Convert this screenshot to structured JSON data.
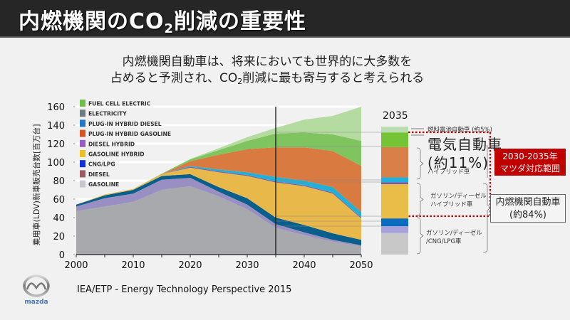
{
  "header": {
    "title_pre": "内燃機関のCO",
    "title_sub": "2",
    "title_post": "削減の重要性"
  },
  "subtitle": {
    "line1": "内燃機関自動車は、将来においても世界的に大多数を",
    "line2_pre": "占めると予測され、CO",
    "line2_sub": "2",
    "line2_post": "削減に最も寄与すると考えられる"
  },
  "source": "IEA/ETP  -  Energy Technology Perspective 2015",
  "logo": {
    "icon": "mazda-logo",
    "text": "mazda"
  },
  "annotations": {
    "bar_year": "2035",
    "fcev": "燃料電池自動車 (約5%)",
    "ev_big_1": "電気自動車",
    "ev_big_2": "(約11%)",
    "plugin_hybrid": "ハイブリッド車",
    "hybrid_1": "ガソリン/ディーゼル",
    "hybrid_2": "ハイブリッド車",
    "conv_1": "ガソリン/ディーゼル",
    "conv_2": "/CNG/LPG車",
    "mazda_range_1": "2030-2035年",
    "mazda_range_2": "マツダ対応範囲",
    "ice_1": "内燃機関自動車",
    "ice_2": "(約84%)"
  },
  "chart_data": {
    "type": "area",
    "stacked": true,
    "title": "",
    "xlabel": "",
    "ylabel": "乗用車(LDV)新車販売台数[百万台]",
    "x": [
      2000,
      2005,
      2010,
      2015,
      2020,
      2025,
      2030,
      2035,
      2040,
      2045,
      2050
    ],
    "xticks": [
      "2000",
      "2010",
      "2020",
      "2030",
      "2040",
      "2050"
    ],
    "yticks": [
      "0",
      "20",
      "40",
      "60",
      "80",
      "100",
      "120",
      "140",
      "160"
    ],
    "xlim": [
      2000,
      2050
    ],
    "ylim": [
      0,
      160
    ],
    "vertical_marker": 2035,
    "legend_position": "top-left",
    "series": [
      {
        "name": "GASOLINE",
        "color": "#a8a9ad",
        "values": [
          47,
          52,
          57,
          70,
          74,
          63,
          49,
          29,
          21,
          14,
          9
        ]
      },
      {
        "name": "DIESEL HYBRID",
        "color": "#9a8fc2",
        "values": [
          5,
          9,
          9,
          11,
          9,
          5,
          5,
          4,
          3,
          2,
          1
        ]
      },
      {
        "name": "CNG/LPG",
        "color": "#0a5e8c",
        "values": [
          2,
          3,
          4,
          4,
          4,
          5,
          7,
          7,
          8,
          7,
          6
        ]
      },
      {
        "name": "GASOLINE HYBRID",
        "color": "#e8b84a",
        "values": [
          0,
          1,
          1,
          2,
          7,
          16,
          24,
          38,
          42,
          43,
          23
        ]
      },
      {
        "name": "DIESEL",
        "color": "#8b5a9a",
        "values": [
          0,
          0,
          0,
          0,
          1,
          1,
          1,
          1,
          1,
          1,
          1
        ]
      },
      {
        "name": "PLUG-IN HYBRID DIESEL",
        "color": "#20b0d8",
        "values": [
          0,
          0,
          0,
          0,
          1,
          2,
          3,
          5,
          5,
          6,
          6
        ]
      },
      {
        "name": "PLUG-IN HYBRID GASOLINE",
        "color": "#d97a40",
        "values": [
          0,
          0,
          0,
          0,
          5,
          16,
          25,
          32,
          36,
          39,
          50
        ]
      },
      {
        "name": "ELECTRICITY",
        "color": "#80c460",
        "values": [
          0,
          0,
          0,
          0.5,
          2,
          5,
          9,
          15,
          16,
          18,
          27
        ]
      },
      {
        "name": "FUEL CELL ELECTRIC",
        "color": "#b5dca0",
        "values": [
          0,
          0,
          0,
          0,
          0.5,
          2,
          4,
          6,
          14,
          20,
          37
        ]
      }
    ],
    "legend": [
      {
        "name": "FUEL CELL ELECTRIC",
        "color": "#6cc04a"
      },
      {
        "name": "ELECTRICITY",
        "color": "#6d7c7c"
      },
      {
        "name": "PLUG-IN HYBRID DIESEL",
        "color": "#1f78c8"
      },
      {
        "name": "PLUG-IN HYBRID GASOLINE",
        "color": "#d9531e"
      },
      {
        "name": "DIESEL HYBRID",
        "color": "#9b59c6"
      },
      {
        "name": "GASOLINE HYBRID",
        "color": "#f0c020"
      },
      {
        "name": "CNG/LPG",
        "color": "#1030e0"
      },
      {
        "name": "DIESEL",
        "color": "#9c5a60"
      },
      {
        "name": "GASOLINE",
        "color": "#c8c8cc"
      }
    ],
    "bar_2035": {
      "label": "2035",
      "segments": [
        {
          "name": "GASOLINE/DIESEL/CNG/LPG",
          "color": "#c8c8c8",
          "value": 22
        },
        {
          "name": "DIESEL HYBRID",
          "color": "#a7a2da",
          "value": 7
        },
        {
          "name": "CNG/LPG",
          "color": "#0a6cc0",
          "value": 8
        },
        {
          "name": "GASOLINE HYBRID",
          "color": "#e8bd48",
          "value": 35
        },
        {
          "name": "DIESEL",
          "color": "#7a5aa0",
          "value": 2
        },
        {
          "name": "PLUG-IN HYBRID DIESEL",
          "color": "#20b0e0",
          "value": 5
        },
        {
          "name": "PLUG-IN HYBRID GASOLINE",
          "color": "#d98048",
          "value": 31
        },
        {
          "name": "ELECTRICITY",
          "color": "#74c435",
          "value": 15
        },
        {
          "name": "FUEL CELL ELECTRIC",
          "color": "#b9ddb0",
          "value": 6
        }
      ]
    }
  }
}
